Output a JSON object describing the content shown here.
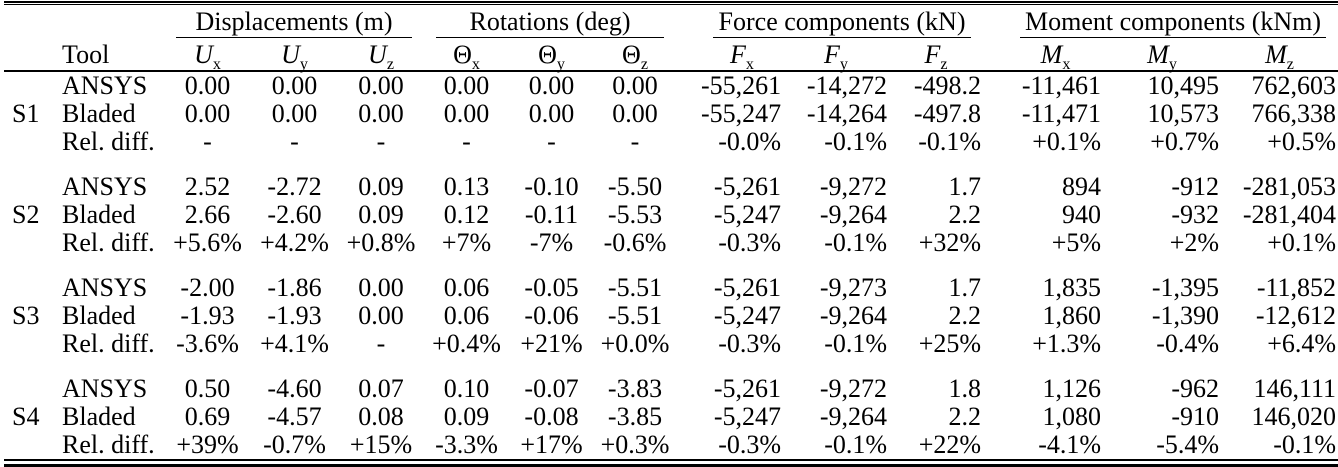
{
  "table": {
    "tool_header": "Tool",
    "groups": [
      {
        "title": "Displacements (m)",
        "headers": [
          {
            "sym": "U",
            "sub": "x"
          },
          {
            "sym": "U",
            "sub": "y"
          },
          {
            "sym": "U",
            "sub": "z"
          }
        ]
      },
      {
        "title": "Rotations (deg)",
        "headers": [
          {
            "sym": "Θ",
            "sub": "x"
          },
          {
            "sym": "Θ",
            "sub": "y"
          },
          {
            "sym": "Θ",
            "sub": "z"
          }
        ]
      },
      {
        "title": "Force components (kN)",
        "headers": [
          {
            "sym": "F",
            "sub": "x"
          },
          {
            "sym": "F",
            "sub": "y"
          },
          {
            "sym": "F",
            "sub": "z"
          }
        ]
      },
      {
        "title": "Moment components (kNm)",
        "headers": [
          {
            "sym": "M",
            "sub": "x"
          },
          {
            "sym": "M",
            "sub": "y"
          },
          {
            "sym": "M",
            "sub": "z"
          }
        ]
      }
    ],
    "sections": [
      {
        "label": "S1",
        "rows": [
          {
            "tool": "ANSYS",
            "values": [
              "0.00",
              "0.00",
              "0.00",
              "0.00",
              "0.00",
              "0.00",
              "-55,261",
              "-14,272",
              "-498.2",
              "-11,461",
              "10,495",
              "762,603"
            ]
          },
          {
            "tool": "Bladed",
            "values": [
              "0.00",
              "0.00",
              "0.00",
              "0.00",
              "0.00",
              "0.00",
              "-55,247",
              "-14,264",
              "-497.8",
              "-11,471",
              "10,573",
              "766,338"
            ]
          },
          {
            "tool": "Rel. diff.",
            "values": [
              "-",
              "-",
              "-",
              "-",
              "-",
              "-",
              "-0.0%",
              "-0.1%",
              "-0.1%",
              "+0.1%",
              "+0.7%",
              "+0.5%"
            ]
          }
        ]
      },
      {
        "label": "S2",
        "rows": [
          {
            "tool": "ANSYS",
            "values": [
              "2.52",
              "-2.72",
              "0.09",
              "0.13",
              "-0.10",
              "-5.50",
              "-5,261",
              "-9,272",
              "1.7",
              "894",
              "-912",
              "-281,053"
            ]
          },
          {
            "tool": "Bladed",
            "values": [
              "2.66",
              "-2.60",
              "0.09",
              "0.12",
              "-0.11",
              "-5.53",
              "-5,247",
              "-9,264",
              "2.2",
              "940",
              "-932",
              "-281,404"
            ]
          },
          {
            "tool": "Rel. diff.",
            "values": [
              "+5.6%",
              "+4.2%",
              "+0.8%",
              "+7%",
              "-7%",
              "-0.6%",
              "-0.3%",
              "-0.1%",
              "+32%",
              "+5%",
              "+2%",
              "+0.1%"
            ]
          }
        ]
      },
      {
        "label": "S3",
        "rows": [
          {
            "tool": "ANSYS",
            "values": [
              "-2.00",
              "-1.86",
              "0.00",
              "0.06",
              "-0.05",
              "-5.51",
              "-5,261",
              "-9,273",
              "1.7",
              "1,835",
              "-1,395",
              "-11,852"
            ]
          },
          {
            "tool": "Bladed",
            "values": [
              "-1.93",
              "-1.93",
              "0.00",
              "0.06",
              "-0.06",
              "-5.51",
              "-5,247",
              "-9,264",
              "2.2",
              "1,860",
              "-1,390",
              "-12,612"
            ]
          },
          {
            "tool": "Rel. diff.",
            "values": [
              "-3.6%",
              "+4.1%",
              "-",
              "+0.4%",
              "+21%",
              "+0.0%",
              "-0.3%",
              "-0.1%",
              "+25%",
              "+1.3%",
              "-0.4%",
              "+6.4%"
            ]
          }
        ]
      },
      {
        "label": "S4",
        "rows": [
          {
            "tool": "ANSYS",
            "values": [
              "0.50",
              "-4.60",
              "0.07",
              "0.10",
              "-0.07",
              "-3.83",
              "-5,261",
              "-9,272",
              "1.8",
              "1,126",
              "-962",
              "146,111"
            ]
          },
          {
            "tool": "Bladed",
            "values": [
              "0.69",
              "-4.57",
              "0.08",
              "0.09",
              "-0.08",
              "-3.85",
              "-5,247",
              "-9,264",
              "2.2",
              "1,080",
              "-910",
              "146,020"
            ]
          },
          {
            "tool": "Rel. diff.",
            "values": [
              "+39%",
              "-0.7%",
              "+15%",
              "-3.3%",
              "+17%",
              "+0.3%",
              "-0.3%",
              "-0.1%",
              "+22%",
              "-4.1%",
              "-5.4%",
              "-0.1%"
            ]
          }
        ]
      }
    ]
  }
}
